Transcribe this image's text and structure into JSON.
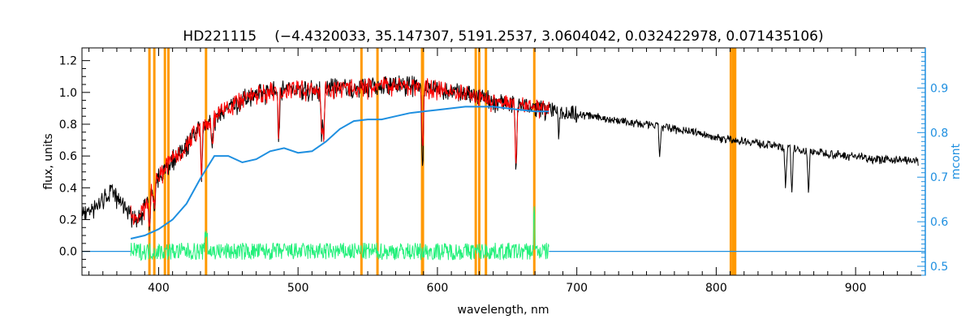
{
  "chart_data": {
    "type": "line",
    "title": "HD221115",
    "subtitle": "(−4.4320033, 35.147307, 5191.2537, 3.0604042, 0.032422978, 0.071435106)",
    "xlabel": "wavelength, nm",
    "ylabel": "flux, units",
    "y2label": "mcont",
    "xlim": [
      345,
      950
    ],
    "ylim": [
      -0.15,
      1.28
    ],
    "y2lim": [
      0.48,
      0.99
    ],
    "x_ticks": [
      400,
      500,
      600,
      700,
      800,
      900
    ],
    "y_ticks": [
      0.0,
      0.2,
      0.4,
      0.6,
      0.8,
      1.0,
      1.2
    ],
    "y2_ticks": [
      0.5,
      0.6,
      0.7,
      0.8,
      0.9
    ],
    "grid": false,
    "colors": {
      "observed": "#000000",
      "model": "#ff0000",
      "continuum": "#1e8fe0",
      "residual": "#22f07a",
      "mask": "#ff9900",
      "axis_right": "#1e8fe0"
    },
    "mask_lines_nm": [
      393.4,
      396.9,
      404.5,
      407.0,
      434.0,
      545.5,
      557.0,
      589.0,
      589.6,
      627.5,
      630.0,
      634.8,
      669.5,
      810.5,
      812.3,
      813.6
    ],
    "series": [
      {
        "key": "observed",
        "axis": "left",
        "x": [
          345,
          355,
          365,
          372,
          380,
          385,
          392,
          397,
          402,
          408,
          415,
          422,
          428,
          435,
          445,
          455,
          465,
          480,
          495,
          510,
          525,
          540,
          555,
          570,
          580,
          590,
          600,
          615,
          630,
          645,
          660,
          680,
          700,
          720,
          740,
          760,
          780,
          800,
          820,
          840,
          860,
          880,
          900,
          920,
          935,
          945
        ],
        "y": [
          0.25,
          0.3,
          0.38,
          0.34,
          0.25,
          0.2,
          0.33,
          0.45,
          0.5,
          0.58,
          0.63,
          0.7,
          0.79,
          0.81,
          0.89,
          0.94,
          0.99,
          1.02,
          1.04,
          1.03,
          1.04,
          1.04,
          1.05,
          1.06,
          1.06,
          1.05,
          1.03,
          1.01,
          0.98,
          0.95,
          0.93,
          0.9,
          0.87,
          0.84,
          0.81,
          0.79,
          0.76,
          0.72,
          0.7,
          0.67,
          0.64,
          0.62,
          0.6,
          0.58,
          0.58,
          0.57
        ]
      },
      {
        "key": "model",
        "axis": "left",
        "x": [
          380,
          385,
          392,
          397,
          402,
          408,
          415,
          422,
          428,
          435,
          445,
          455,
          465,
          480,
          495,
          510,
          525,
          540,
          555,
          570,
          580,
          590,
          600,
          615,
          630,
          645,
          660,
          670,
          680
        ],
        "y": [
          0.25,
          0.2,
          0.33,
          0.45,
          0.5,
          0.58,
          0.63,
          0.7,
          0.79,
          0.81,
          0.89,
          0.94,
          0.99,
          1.02,
          1.04,
          1.03,
          1.04,
          1.04,
          1.05,
          1.06,
          1.06,
          1.05,
          1.03,
          1.01,
          0.98,
          0.95,
          0.93,
          0.92,
          0.91
        ]
      },
      {
        "key": "continuum",
        "axis": "left",
        "x": [
          380,
          390,
          400,
          410,
          420,
          430,
          440,
          450,
          460,
          470,
          480,
          490,
          500,
          510,
          520,
          530,
          540,
          550,
          560,
          570,
          580,
          590,
          600,
          610,
          620,
          630,
          640,
          650,
          660,
          670,
          680
        ],
        "y": [
          0.08,
          0.1,
          0.14,
          0.2,
          0.3,
          0.46,
          0.6,
          0.6,
          0.56,
          0.58,
          0.63,
          0.65,
          0.62,
          0.63,
          0.69,
          0.77,
          0.82,
          0.83,
          0.83,
          0.85,
          0.87,
          0.88,
          0.89,
          0.9,
          0.91,
          0.91,
          0.91,
          0.9,
          0.89,
          0.88,
          0.88
        ]
      },
      {
        "key": "residual",
        "axis": "left",
        "x": [
          380,
          400,
          450,
          500,
          550,
          600,
          650,
          680
        ],
        "y": [
          0.0,
          0.0,
          0.0,
          0.0,
          0.0,
          0.0,
          0.0,
          0.0
        ]
      },
      {
        "key": "baseline",
        "axis": "left",
        "x": [
          680,
          950
        ],
        "y": [
          0.0,
          0.0
        ]
      }
    ]
  }
}
